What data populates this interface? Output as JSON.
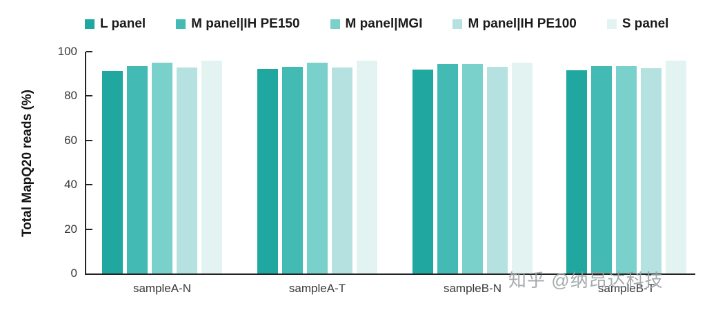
{
  "watermark": "知乎 @纳昂达科技",
  "chart_data": {
    "type": "bar",
    "title": "",
    "ylabel": "Total MapQ20 reads (%)",
    "xlabel": "",
    "ylim": [
      0,
      100
    ],
    "yticks": [
      0,
      20,
      40,
      60,
      80,
      100
    ],
    "grid": false,
    "legend_position": "top",
    "categories": [
      "sampleA-N",
      "sampleA-T",
      "sampleB-N",
      "sampleB-T"
    ],
    "series": [
      {
        "name": "L panel",
        "color": "#1fa7a0",
        "values": [
          91.4,
          92.2,
          92.0,
          91.6
        ]
      },
      {
        "name": "M panel|IH PE150",
        "color": "#43bab3",
        "values": [
          93.5,
          93.3,
          94.3,
          93.5
        ]
      },
      {
        "name": "M panel|MGI",
        "color": "#7ad0cb",
        "values": [
          94.9,
          95.0,
          94.4,
          93.6
        ]
      },
      {
        "name": "M panel|IH PE100",
        "color": "#b5e2e0",
        "values": [
          92.8,
          93.0,
          93.3,
          92.6
        ]
      },
      {
        "name": "S panel",
        "color": "#e3f3f2",
        "values": [
          96.0,
          95.9,
          94.9,
          96.0
        ]
      }
    ]
  }
}
